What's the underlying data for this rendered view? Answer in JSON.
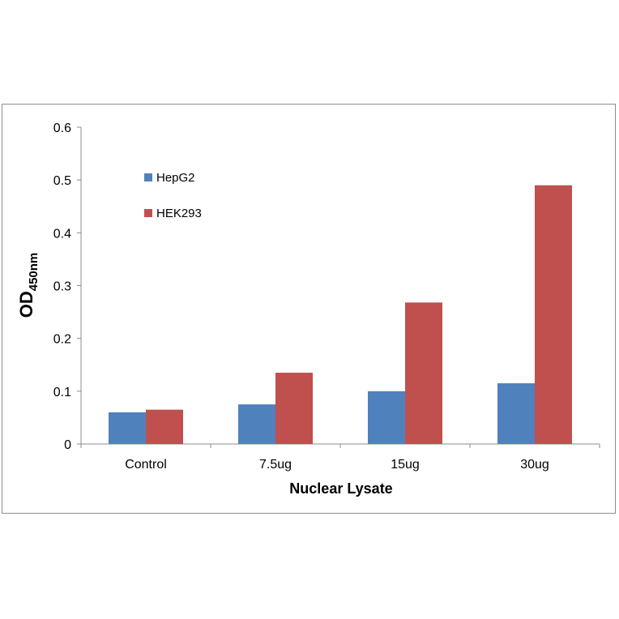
{
  "chart_data": {
    "type": "bar",
    "title": "",
    "xlabel": "Nuclear Lysate",
    "ylabel": "OD450nm",
    "ylabel_main": "OD",
    "ylabel_sub": "450nm",
    "categories": [
      "Control",
      "7.5ug",
      "15ug",
      "30ug"
    ],
    "series": [
      {
        "name": "HepG2",
        "color": "#4f81bd",
        "values": [
          0.06,
          0.075,
          0.1,
          0.115
        ]
      },
      {
        "name": "HEK293",
        "color": "#c0504d",
        "values": [
          0.065,
          0.135,
          0.268,
          0.49
        ]
      }
    ],
    "ylim": [
      0,
      0.6
    ],
    "yticks": [
      "0",
      "0.1",
      "0.2",
      "0.3",
      "0.4",
      "0.5",
      "0.6"
    ],
    "grid": false,
    "legend_position": "upper-left-inside"
  }
}
